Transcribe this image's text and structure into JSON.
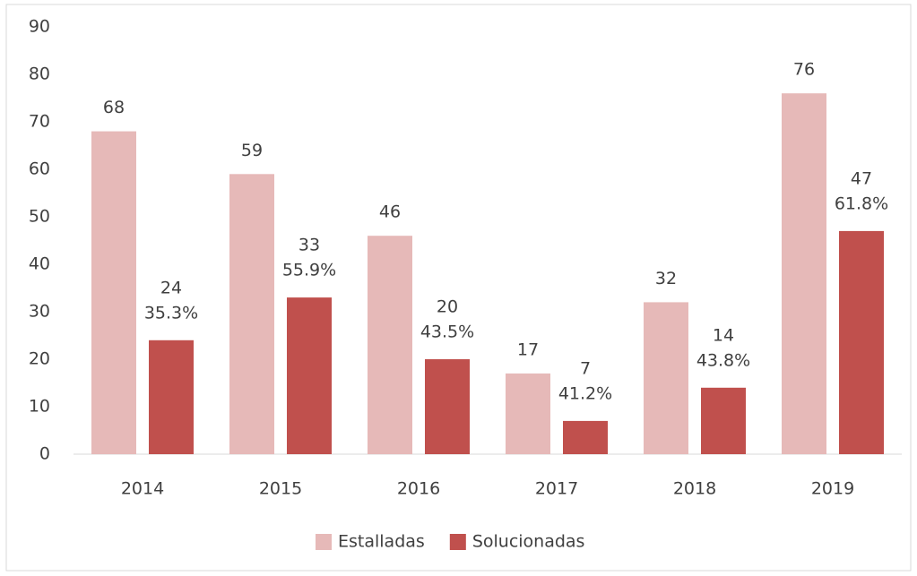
{
  "chart_data": {
    "type": "bar",
    "categories": [
      "2014",
      "2015",
      "2016",
      "2017",
      "2018",
      "2019"
    ],
    "series": [
      {
        "name": "Estalladas",
        "color": "#e6b9b8",
        "values": [
          68,
          59,
          46,
          17,
          32,
          76
        ]
      },
      {
        "name": "Solucionadas",
        "color": "#c0504d",
        "values": [
          24,
          33,
          20,
          7,
          14,
          47
        ],
        "share_labels": [
          "35.3%",
          "55.9%",
          "43.5%",
          "41.2%",
          "43.8%",
          "61.8%"
        ]
      }
    ],
    "ylim": [
      0,
      90
    ],
    "yticks": [
      0,
      10,
      20,
      30,
      40,
      50,
      60,
      70,
      80,
      90
    ],
    "grid": false,
    "legend": "bottom"
  }
}
